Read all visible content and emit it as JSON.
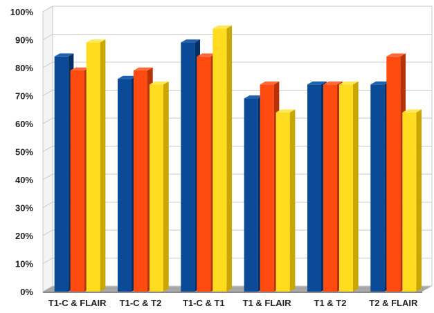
{
  "chart_data": {
    "type": "bar",
    "style": "3d-clustered",
    "categories": [
      "T1-C & FLAIR",
      "T1-C & T2",
      "T1-C & T1",
      "T1  & FLAIR",
      "T1  & T2",
      "T2 & FLAIR"
    ],
    "series": [
      {
        "values": [
          84,
          76,
          89,
          69,
          74,
          74
        ]
      },
      {
        "values": [
          79,
          79,
          84,
          74,
          74,
          84
        ]
      },
      {
        "values": [
          89,
          74,
          94,
          64,
          74,
          64
        ]
      }
    ],
    "colors": {
      "series": [
        "#0a4a96",
        "#ff4a10",
        "#ffdc20"
      ],
      "series_side": [
        "#062f66",
        "#b83208",
        "#c9a600"
      ],
      "series_top": [
        "#1f62b0",
        "#ff6a38",
        "#ffe858"
      ],
      "grid": "#c8c8c8",
      "wall": "#ffffff",
      "floor": "#a8a8a8"
    },
    "y_ticks": [
      "0%",
      "10%",
      "20%",
      "30%",
      "40%",
      "50%",
      "60%",
      "70%",
      "80%",
      "90%",
      "100%"
    ],
    "ylim": [
      0,
      100
    ],
    "title": "",
    "xlabel": "",
    "ylabel": "",
    "grid": true,
    "legend": "none"
  }
}
